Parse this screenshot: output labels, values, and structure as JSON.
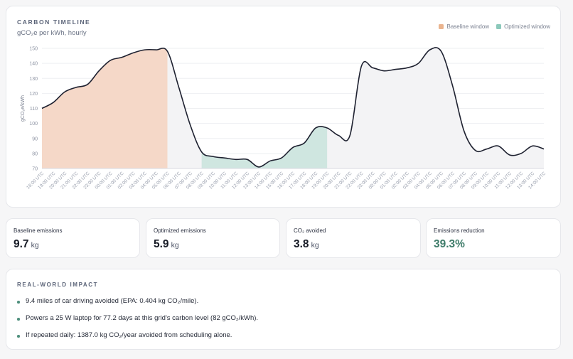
{
  "chart_card": {
    "title": "CARBON TIMELINE",
    "subtitle": "gCO₂e per kWh, hourly"
  },
  "legend": {
    "baseline": "Baseline window",
    "optimized": "Optimized window"
  },
  "colors": {
    "baseline_fill": "#f5d8c8",
    "baseline_swatch": "#eab48f",
    "optimized_fill": "#cfe6e0",
    "optimized_swatch": "#8cc9bb",
    "other_fill": "#f3f3f5",
    "line": "#1e2130",
    "grid": "#eeeff2",
    "accent": "#3f7c6a"
  },
  "chart_data": {
    "type": "area",
    "ylabel": "gCO₂e/kWh",
    "xlabel": "",
    "ylim": [
      70,
      150
    ],
    "yticks": [
      70,
      80,
      90,
      100,
      110,
      120,
      130,
      140,
      150
    ],
    "grid": true,
    "legend_position": "top-right",
    "x": [
      "18:00 UTC",
      "19:00 UTC",
      "20:00 UTC",
      "21:00 UTC",
      "22:00 UTC",
      "23:00 UTC",
      "00:00 UTC",
      "01:00 UTC",
      "02:00 UTC",
      "03:00 UTC",
      "04:00 UTC",
      "05:00 UTC",
      "06:00 UTC",
      "07:00 UTC",
      "08:00 UTC",
      "09:00 UTC",
      "10:00 UTC",
      "11:00 UTC",
      "12:00 UTC",
      "13:00 UTC",
      "14:00 UTC",
      "15:00 UTC",
      "16:00 UTC",
      "17:00 UTC",
      "18:00 UTC",
      "19:00 UTC",
      "20:00 UTC",
      "21:00 UTC",
      "22:00 UTC",
      "23:00 UTC",
      "00:00 UTC",
      "01:00 UTC",
      "02:00 UTC",
      "03:00 UTC",
      "04:00 UTC",
      "05:00 UTC",
      "06:00 UTC",
      "07:00 UTC",
      "08:00 UTC",
      "09:00 UTC",
      "10:00 UTC",
      "11:00 UTC",
      "12:00 UTC",
      "13:00 UTC",
      "14:00 UTC"
    ],
    "series": [
      {
        "values": [
          110,
          114,
          121,
          124,
          126,
          135,
          142,
          144,
          147,
          149,
          149,
          148,
          124,
          99,
          81,
          78,
          77,
          76,
          76,
          71,
          75,
          77,
          84,
          87,
          97,
          97,
          92,
          92,
          138,
          137,
          135,
          136,
          137,
          140,
          149,
          148,
          125,
          95,
          82,
          83,
          85,
          79,
          80,
          85,
          83
        ]
      }
    ],
    "baseline_window": [
      0,
      11
    ],
    "optimized_window": [
      14,
      25
    ]
  },
  "stats": [
    {
      "label": "Baseline emissions",
      "value": "9.7",
      "unit": "kg"
    },
    {
      "label": "Optimized emissions",
      "value": "5.9",
      "unit": "kg"
    },
    {
      "label": "CO₂ avoided",
      "value": "3.8",
      "unit": "kg"
    },
    {
      "label": "Emissions reduction",
      "value": "39.3%",
      "unit": ""
    }
  ],
  "impact": {
    "title": "REAL-WORLD IMPACT",
    "items": [
      "9.4 miles of car driving avoided (EPA: 0.404 kg CO₂/mile).",
      "Powers a 25 W laptop for 77.2 days at this grid's carbon level (82 gCO₂/kWh).",
      "If repeated daily: 1387.0 kg CO₂/year avoided from scheduling alone."
    ]
  }
}
